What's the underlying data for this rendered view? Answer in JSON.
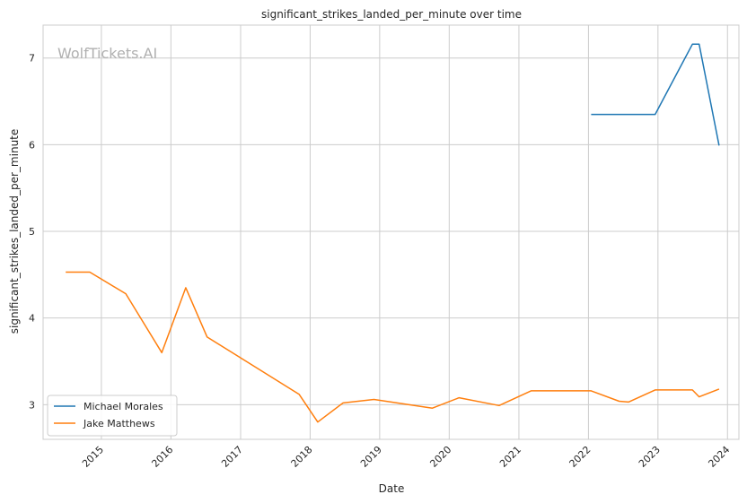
{
  "watermark": "WolfTickets.AI",
  "chart_data": {
    "type": "line",
    "title": "significant_strikes_landed_per_minute over time",
    "xlabel": "Date",
    "ylabel": "significant_strikes_landed_per_minute",
    "x_ticks": [
      "2015",
      "2016",
      "2017",
      "2018",
      "2019",
      "2020",
      "2021",
      "2022",
      "2023",
      "2024"
    ],
    "y_ticks": [
      3,
      4,
      5,
      6,
      7
    ],
    "xlim": [
      "2014-03-01",
      "2024-03-01"
    ],
    "ylim": [
      2.6,
      7.38
    ],
    "grid": true,
    "legend_position": "lower-left",
    "series": [
      {
        "name": "Michael Morales",
        "color": "#1f77b4",
        "points": [
          [
            "2022-01-15",
            6.35
          ],
          [
            "2022-12-17",
            6.35
          ],
          [
            "2023-07-01",
            7.16
          ],
          [
            "2023-08-05",
            7.16
          ],
          [
            "2023-11-18",
            5.99
          ]
        ]
      },
      {
        "name": "Jake Matthews",
        "color": "#ff7f0e",
        "points": [
          [
            "2014-06-28",
            4.53
          ],
          [
            "2014-11-01",
            4.53
          ],
          [
            "2015-05-09",
            4.28
          ],
          [
            "2015-11-14",
            3.6
          ],
          [
            "2016-03-19",
            4.35
          ],
          [
            "2016-07-09",
            3.78
          ],
          [
            "2017-11-04",
            3.12
          ],
          [
            "2018-02-10",
            2.8
          ],
          [
            "2018-06-23",
            3.02
          ],
          [
            "2018-12-02",
            3.06
          ],
          [
            "2019-10-05",
            2.96
          ],
          [
            "2020-02-22",
            3.08
          ],
          [
            "2020-09-19",
            2.99
          ],
          [
            "2021-03-06",
            3.16
          ],
          [
            "2022-01-15",
            3.16
          ],
          [
            "2022-06-11",
            3.04
          ],
          [
            "2022-07-30",
            3.03
          ],
          [
            "2022-12-17",
            3.17
          ],
          [
            "2023-07-01",
            3.17
          ],
          [
            "2023-08-05",
            3.09
          ],
          [
            "2023-11-18",
            3.18
          ]
        ]
      }
    ]
  }
}
